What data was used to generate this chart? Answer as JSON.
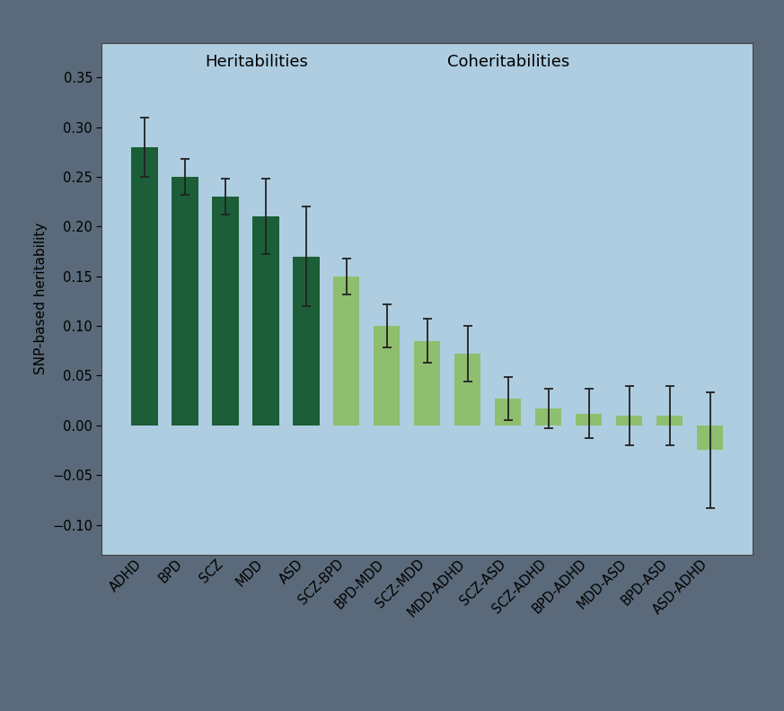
{
  "categories": [
    "ADHD",
    "BPD",
    "SCZ",
    "MDD",
    "ASD",
    "SCZ-BPD",
    "BPD-MDD",
    "SCZ-MDD",
    "MDD-ADHD",
    "SCZ-ASD",
    "SCZ-ADHD",
    "BPD-ADHD",
    "MDD-ASD",
    "BPD-ASD",
    "ASD-ADHD"
  ],
  "values": [
    0.28,
    0.25,
    0.23,
    0.21,
    0.17,
    0.15,
    0.1,
    0.085,
    0.072,
    0.027,
    0.017,
    0.012,
    0.01,
    0.01,
    -0.025
  ],
  "errors": [
    0.03,
    0.018,
    0.018,
    0.038,
    0.05,
    0.018,
    0.022,
    0.022,
    0.028,
    0.022,
    0.02,
    0.025,
    0.03,
    0.03,
    0.058
  ],
  "bar_colors_dark": "#1b5e38",
  "bar_colors_light": "#8fbe6e",
  "heritability_count": 5,
  "background_color": "#aecde0",
  "border_color": "#5a6a7a",
  "ylabel": "SNP-based heritability",
  "ylim": [
    -0.13,
    0.385
  ],
  "yticks": [
    -0.1,
    -0.05,
    0.0,
    0.05,
    0.1,
    0.15,
    0.2,
    0.25,
    0.3,
    0.35
  ],
  "heritabilities_label": "Heritabilities",
  "coheritabilities_label": "Coheritabilities",
  "title_fontsize": 13,
  "axis_fontsize": 11,
  "tick_fontsize": 10.5,
  "bar_width": 0.65
}
